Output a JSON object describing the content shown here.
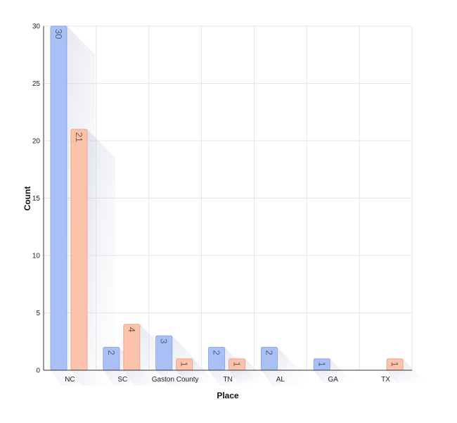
{
  "chart_data": {
    "type": "bar",
    "title": "",
    "xlabel": "Place",
    "ylabel": "Count",
    "categories": [
      "NC",
      "SC",
      "Gaston County",
      "TN",
      "AL",
      "GA",
      "TX"
    ],
    "series": [
      {
        "values": [
          30,
          2,
          3,
          2,
          2,
          1,
          null
        ],
        "color": "#a9c0f7"
      },
      {
        "values": [
          21,
          4,
          1,
          1,
          null,
          null,
          1
        ],
        "color": "#fcc3aa"
      }
    ],
    "ylim": [
      0,
      30
    ],
    "yticks": [
      0,
      5,
      10,
      15,
      20,
      25,
      30
    ],
    "grid": true,
    "legend": "none",
    "data_labels": true,
    "label_orientation": "rotated-90"
  }
}
